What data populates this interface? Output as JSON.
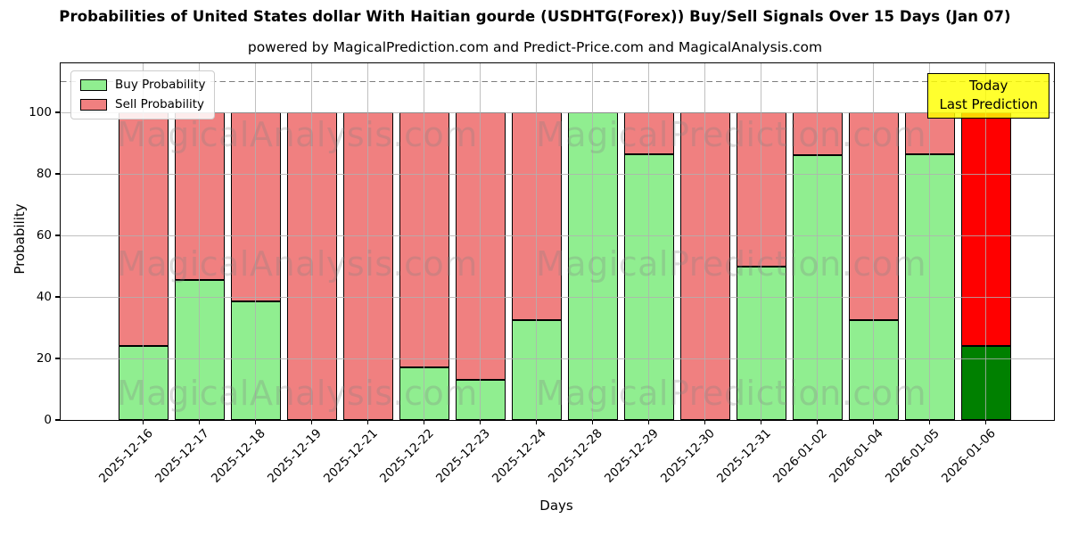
{
  "header": {
    "title": "Probabilities of United States dollar With Haitian gourde (USDHTG(Forex)) Buy/Sell Signals Over 15 Days (Jan 07)",
    "subtitle": "powered by MagicalPrediction.com and Predict-Price.com and MagicalAnalysis.com"
  },
  "chart_data": {
    "type": "bar",
    "stacked": true,
    "title": "Probabilities of United States dollar With Haitian gourde (USDHTG(Forex)) Buy/Sell Signals Over 15 Days (Jan 07)",
    "xlabel": "Days",
    "ylabel": "Probability",
    "ylim": [
      0,
      116
    ],
    "yticks": [
      0,
      20,
      40,
      60,
      80,
      100
    ],
    "grid": true,
    "dashed_line_y": 110,
    "categories": [
      "2025-12-16",
      "2025-12-17",
      "2025-12-18",
      "2025-12-19",
      "2025-12-21",
      "2025-12-22",
      "2025-12-23",
      "2025-12-24",
      "2025-12-28",
      "2025-12-29",
      "2025-12-30",
      "2025-12-31",
      "2026-01-02",
      "2026-01-04",
      "2026-01-05",
      "2026-01-06"
    ],
    "series": [
      {
        "name": "Buy Probability",
        "color": "#90EE90",
        "values": [
          24,
          45.5,
          38.5,
          0,
          0,
          17,
          13,
          32.5,
          100,
          86.5,
          0,
          50,
          86,
          32.5,
          86.5,
          24
        ]
      },
      {
        "name": "Sell Probability",
        "color": "#F08080",
        "values": [
          76,
          54.5,
          61.5,
          100,
          100,
          83,
          87,
          67.5,
          0,
          13.5,
          100,
          50,
          14,
          67.5,
          13.5,
          76
        ]
      }
    ],
    "legend": {
      "position": "upper-left",
      "items": [
        "Buy Probability",
        "Sell Probability"
      ]
    },
    "today_annotation": {
      "text_lines": [
        "Today",
        "Last Prediction"
      ],
      "background": "#FFFF00",
      "applies_to": "2026-01-06",
      "buy_color": "#008000",
      "sell_color": "#FF0000"
    },
    "watermarks": [
      "MagicalAnalysis.com",
      "MagicalPrediction.com"
    ]
  },
  "colors": {
    "buy": "#90EE90",
    "sell": "#F08080",
    "today_buy": "#008000",
    "today_sell": "#FF0000",
    "bar_edge": "#000000",
    "grid": "#b0b0b0",
    "dashed_line": "#7f7f7f",
    "annotation_bg": "#FFFF00",
    "axes_edge": "#000000"
  }
}
